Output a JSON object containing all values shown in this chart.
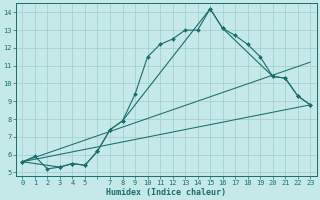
{
  "xlabel": "Humidex (Indice chaleur)",
  "xlim": [
    -0.5,
    23.5
  ],
  "ylim": [
    4.8,
    14.5
  ],
  "xticks": [
    0,
    1,
    2,
    3,
    4,
    5,
    6,
    7,
    8,
    9,
    10,
    11,
    12,
    13,
    14,
    15,
    16,
    17,
    18,
    19,
    20,
    21,
    22,
    23
  ],
  "xticklabels": [
    "0",
    "1",
    "2",
    "3",
    "4",
    "5",
    "",
    "7",
    "8",
    "9",
    "10",
    "11",
    "12",
    "13",
    "14",
    "15",
    "16",
    "17",
    "18",
    "19",
    "20",
    "21",
    "22",
    "23"
  ],
  "yticks": [
    5,
    6,
    7,
    8,
    9,
    10,
    11,
    12,
    13,
    14
  ],
  "bg_color": "#c5e8e8",
  "grid_color": "#9ecece",
  "line_color": "#1a6e6e",
  "lines": [
    {
      "x": [
        0,
        1,
        2,
        3,
        4,
        5,
        6,
        7,
        8,
        9,
        10,
        11,
        12,
        13,
        14,
        15,
        16,
        17,
        18,
        19,
        20,
        21,
        22,
        23
      ],
      "y": [
        5.6,
        5.9,
        5.2,
        5.3,
        5.5,
        5.4,
        6.2,
        7.4,
        7.9,
        9.4,
        11.5,
        12.2,
        12.5,
        13.0,
        13.0,
        14.2,
        13.1,
        12.7,
        12.2,
        11.5,
        10.4,
        10.3,
        9.3,
        8.8
      ],
      "has_markers": true
    },
    {
      "x": [
        0,
        3,
        4,
        5,
        6,
        7,
        8,
        15,
        16,
        20,
        21,
        22,
        23
      ],
      "y": [
        5.6,
        5.3,
        5.5,
        5.4,
        6.2,
        7.4,
        7.9,
        14.2,
        13.1,
        10.4,
        10.3,
        9.3,
        8.8
      ],
      "has_markers": true
    },
    {
      "x": [
        0,
        23
      ],
      "y": [
        5.6,
        11.2
      ],
      "has_markers": false
    },
    {
      "x": [
        0,
        23
      ],
      "y": [
        5.6,
        8.8
      ],
      "has_markers": false
    }
  ],
  "figsize": [
    3.2,
    2.0
  ],
  "dpi": 100,
  "xlabel_fontsize": 6.0,
  "tick_fontsize": 5.0
}
